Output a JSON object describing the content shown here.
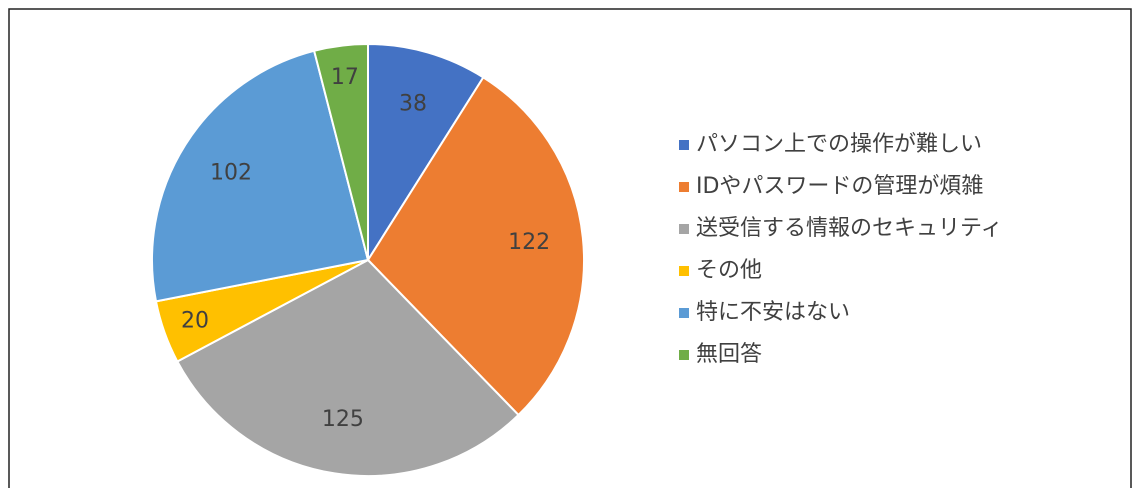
{
  "chart_data": {
    "type": "pie",
    "categories": [
      "パソコン上での操作が難しい",
      "IDやパスワードの管理が煩雑",
      "送受信する情報のセキュリティ",
      "その他",
      "特に不安はない",
      "無回答"
    ],
    "values": [
      38,
      122,
      125,
      20,
      102,
      17
    ],
    "colors": [
      "#4472c4",
      "#ed7d31",
      "#a5a5a5",
      "#ffc000",
      "#5b9bd5",
      "#70ad47"
    ],
    "legend": "right"
  }
}
